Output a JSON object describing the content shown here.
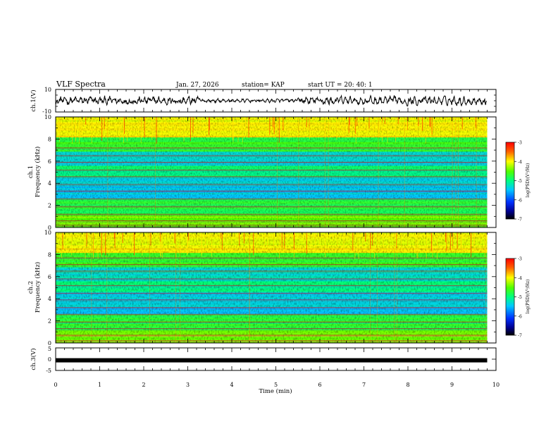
{
  "header": {
    "title": "VLF Spectra",
    "date": "Jan. 27, 2026",
    "station": "station= KAP",
    "start": "start UT =  20: 40: 1"
  },
  "chart_data": [
    {
      "type": "line",
      "panel": "ch1-waveform",
      "ylabel": "ch.1(V)",
      "ylim": [
        -10,
        10
      ],
      "ytick_labels": [
        "10",
        "-10"
      ],
      "xlim": [
        0,
        10
      ],
      "data_extent_min": [
        0,
        9.8
      ],
      "amplitude_envelope_v": [
        -6,
        6
      ]
    },
    {
      "type": "heatmap",
      "panel": "ch1-spectrogram",
      "ylabel": [
        "ch.1",
        "Frequency (kHz)"
      ],
      "ylim": [
        0,
        10
      ],
      "ytick_labels": [
        "0",
        "2",
        "4",
        "6",
        "8",
        "10"
      ],
      "xlim": [
        0,
        10
      ],
      "data_extent_min": [
        0,
        9.8
      ],
      "colorbar": {
        "label": "log(PSD)(V²/Hz)",
        "range": [
          -7,
          -3
        ],
        "tick_labels": [
          "-3",
          "-4",
          "-5",
          "-6",
          "-7"
        ]
      },
      "frequency_bands_khz": [
        0.2,
        0.6,
        1.2,
        1.9,
        2.6,
        3.3,
        3.9,
        4.6,
        5.2,
        5.9,
        6.5,
        7.2
      ]
    },
    {
      "type": "heatmap",
      "panel": "ch2-spectrogram",
      "ylabel": [
        "ch.2",
        "Frequency (kHz)"
      ],
      "ylim": [
        0,
        10
      ],
      "ytick_labels": [
        "0",
        "2",
        "4",
        "6",
        "8",
        "10"
      ],
      "xlim": [
        0,
        10
      ],
      "data_extent_min": [
        0,
        9.8
      ],
      "colorbar": {
        "label": "log(PSD)(V²/Hz)",
        "range": [
          -7,
          -3
        ],
        "tick_labels": [
          "-3",
          "-4",
          "-5",
          "-6",
          "-7"
        ]
      },
      "frequency_bands_khz": [
        0.2,
        0.7,
        1.3,
        1.9,
        2.6,
        3.2,
        3.9,
        4.5,
        5.2,
        5.8,
        6.5,
        7.1,
        7.7
      ]
    },
    {
      "type": "line",
      "panel": "ch3-waveform",
      "ylabel": "ch.3(V)",
      "ylim": [
        -5,
        5
      ],
      "ytick_labels": [
        "5",
        "0",
        "-5"
      ],
      "xlim": [
        0,
        10
      ],
      "data_extent_min": [
        0,
        9.8
      ],
      "constant_level_v": -0.5
    }
  ],
  "xaxis": {
    "label": "Time (min)",
    "ticks": [
      0,
      1,
      2,
      3,
      4,
      5,
      6,
      7,
      8,
      9,
      10
    ],
    "tick_labels": [
      "0",
      "1",
      "2",
      "3",
      "4",
      "5",
      "6",
      "7",
      "8",
      "9",
      "10"
    ]
  },
  "colors": {
    "background": "#ffffff",
    "axis": "#000000",
    "trace": "#000000"
  }
}
